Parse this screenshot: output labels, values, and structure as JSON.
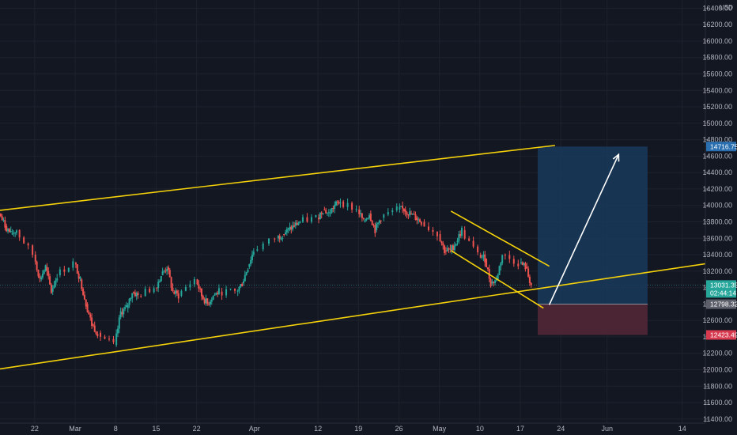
{
  "chart_data": {
    "type": "candlestick",
    "y_unit": "USD",
    "ylim": [
      11350,
      16500
    ],
    "yticks": [
      11400,
      11600,
      11800,
      12000,
      12200,
      12400,
      12600,
      12800,
      13000,
      13200,
      13400,
      13600,
      13800,
      14000,
      14200,
      14400,
      14600,
      14800,
      15000,
      15200,
      15400,
      15600,
      15800,
      16000,
      16200,
      16400
    ],
    "ytick_labels": [
      "11400.00",
      "11600.00",
      "11800.00",
      "12000.00",
      "12200.00",
      "12400.00",
      "12600.00",
      "12800.00",
      "13000.00",
      "13200.00",
      "13400.00",
      "13600.00",
      "13800.00",
      "14000.00",
      "14200.00",
      "14400.00",
      "14600.00",
      "14800.00",
      "15000.00",
      "15200.00",
      "15400.00",
      "15600.00",
      "15800.00",
      "16000.00",
      "16200.00",
      "16400.00"
    ],
    "xlim": [
      "2021-02-16",
      "2021-06-18"
    ],
    "xticks": [
      {
        "date": "2021-02-22",
        "label": "22"
      },
      {
        "date": "2021-03-01",
        "label": "Mar"
      },
      {
        "date": "2021-03-08",
        "label": "8"
      },
      {
        "date": "2021-03-15",
        "label": "15"
      },
      {
        "date": "2021-03-22",
        "label": "22"
      },
      {
        "date": "2021-04-01",
        "label": "Apr"
      },
      {
        "date": "2021-04-12",
        "label": "12"
      },
      {
        "date": "2021-04-19",
        "label": "19"
      },
      {
        "date": "2021-04-26",
        "label": "26"
      },
      {
        "date": "2021-05-03",
        "label": "May"
      },
      {
        "date": "2021-05-10",
        "label": "10"
      },
      {
        "date": "2021-05-17",
        "label": "17"
      },
      {
        "date": "2021-05-24",
        "label": "24"
      },
      {
        "date": "2021-06-01",
        "label": "Jun"
      },
      {
        "date": "2021-06-14",
        "label": "14"
      }
    ],
    "price_path": [
      [
        "2021-02-16",
        13900
      ],
      [
        "2021-02-17",
        13750
      ],
      [
        "2021-02-18",
        13650
      ],
      [
        "2021-02-19",
        13700
      ],
      [
        "2021-02-22",
        13400
      ],
      [
        "2021-02-23",
        13100
      ],
      [
        "2021-02-24",
        13250
      ],
      [
        "2021-02-25",
        12950
      ],
      [
        "2021-02-26",
        13150
      ],
      [
        "2021-03-01",
        13300
      ],
      [
        "2021-03-02",
        13100
      ],
      [
        "2021-03-03",
        12800
      ],
      [
        "2021-03-04",
        12550
      ],
      [
        "2021-03-05",
        12450
      ],
      [
        "2021-03-08",
        12300
      ],
      [
        "2021-03-09",
        12700
      ],
      [
        "2021-03-10",
        12750
      ],
      [
        "2021-03-11",
        12950
      ],
      [
        "2021-03-12",
        12900
      ],
      [
        "2021-03-15",
        13000
      ],
      [
        "2021-03-16",
        13150
      ],
      [
        "2021-03-17",
        13250
      ],
      [
        "2021-03-18",
        12950
      ],
      [
        "2021-03-19",
        12900
      ],
      [
        "2021-03-22",
        13100
      ],
      [
        "2021-03-23",
        12900
      ],
      [
        "2021-03-24",
        12800
      ],
      [
        "2021-03-25",
        12900
      ],
      [
        "2021-03-26",
        12950
      ],
      [
        "2021-03-29",
        12950
      ],
      [
        "2021-03-30",
        13050
      ],
      [
        "2021-03-31",
        13250
      ],
      [
        "2021-04-01",
        13450
      ],
      [
        "2021-04-05",
        13600
      ],
      [
        "2021-04-06",
        13650
      ],
      [
        "2021-04-07",
        13700
      ],
      [
        "2021-04-08",
        13750
      ],
      [
        "2021-04-09",
        13800
      ],
      [
        "2021-04-12",
        13850
      ],
      [
        "2021-04-13",
        13950
      ],
      [
        "2021-04-14",
        13900
      ],
      [
        "2021-04-15",
        14000
      ],
      [
        "2021-04-16",
        14050
      ],
      [
        "2021-04-19",
        13950
      ],
      [
        "2021-04-20",
        13800
      ],
      [
        "2021-04-21",
        13900
      ],
      [
        "2021-04-22",
        13700
      ],
      [
        "2021-04-23",
        13850
      ],
      [
        "2021-04-26",
        13950
      ],
      [
        "2021-04-27",
        13950
      ],
      [
        "2021-04-28",
        13900
      ],
      [
        "2021-04-29",
        13850
      ],
      [
        "2021-04-30",
        13800
      ],
      [
        "2021-05-03",
        13650
      ],
      [
        "2021-05-04",
        13450
      ],
      [
        "2021-05-05",
        13450
      ],
      [
        "2021-05-06",
        13550
      ],
      [
        "2021-05-07",
        13700
      ],
      [
        "2021-05-10",
        13400
      ],
      [
        "2021-05-11",
        13350
      ],
      [
        "2021-05-12",
        13050
      ],
      [
        "2021-05-13",
        13100
      ],
      [
        "2021-05-14",
        13400
      ],
      [
        "2021-05-17",
        13300
      ],
      [
        "2021-05-18",
        13250
      ],
      [
        "2021-05-19",
        13031.35
      ]
    ],
    "trendlines": [
      {
        "name": "upper-channel-line",
        "from": [
          "2021-02-16",
          13940
        ],
        "to": [
          "2021-05-23",
          14730
        ]
      },
      {
        "name": "lower-channel-line",
        "from": [
          "2021-02-16",
          12010
        ],
        "to": [
          "2021-06-18",
          13290
        ]
      },
      {
        "name": "wedge-upper-line",
        "from": [
          "2021-05-05",
          13930
        ],
        "to": [
          "2021-05-22",
          13260
        ]
      },
      {
        "name": "wedge-lower-line",
        "from": [
          "2021-05-05",
          13450
        ],
        "to": [
          "2021-05-21",
          12750
        ]
      }
    ],
    "long_position": {
      "start": "2021-05-20",
      "end": "2021-06-08",
      "entry": 12798.32,
      "target": 14716.75,
      "stop": 12423.49
    },
    "projection_arrow": {
      "from": [
        "2021-05-22",
        12790
      ],
      "to": [
        "2021-06-03",
        14620
      ]
    },
    "current_price": 13031.35,
    "colors": {
      "background": "#131722",
      "grid": "#1e222d",
      "up": "#26a69a",
      "down": "#ef5350",
      "trendline": "#f5d10a",
      "target_zone": "#1a3a5c",
      "stop_zone": "#4e2636",
      "arrow": "#ffffff",
      "price_tag": "#26a69a",
      "target_tag": "#2a6fb0",
      "entry_tag": "#5d606b",
      "stop_tag": "#d7394f"
    }
  },
  "price_tags": {
    "currency": "USD",
    "target": "14716.75",
    "current": "13031.35",
    "countdown": "02:44:14",
    "entry": "12798.32",
    "stop": "12423.49"
  }
}
